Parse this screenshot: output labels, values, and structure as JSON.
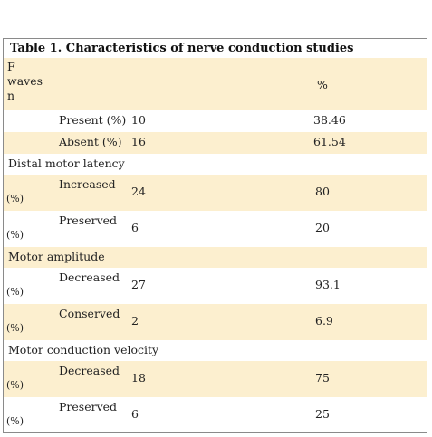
{
  "table": {
    "title": "Table 1. Characteristics of nerve conduction studies",
    "header": {
      "first": "F waves n",
      "pct": "%"
    },
    "rows": [
      {
        "label": "Present (%)",
        "n": 10,
        "pct": 38.46
      },
      {
        "label": "Absent (%)",
        "n": 16,
        "pct": 61.54
      },
      {
        "section": "Distal motor latency"
      },
      {
        "label": "Increased",
        "unit": "(%)",
        "n": 24,
        "pct": 80
      },
      {
        "label": "Preserved",
        "unit": "(%)",
        "n": 6,
        "pct": 20
      },
      {
        "section": "Motor amplitude"
      },
      {
        "label": "Decreased",
        "unit": "(%)",
        "n": 27,
        "pct": 93.1
      },
      {
        "label": "Conserved",
        "unit": "(%)",
        "n": 2,
        "pct": 6.9
      },
      {
        "section": "Motor conduction velocity"
      },
      {
        "label": "Decreased",
        "unit": "(%)",
        "n": 18,
        "pct": 75
      },
      {
        "label": "Preserved",
        "unit": "(%)",
        "n": 6,
        "pct": 25
      }
    ]
  }
}
